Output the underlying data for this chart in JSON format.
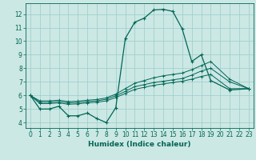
{
  "xlabel": "Humidex (Indice chaleur)",
  "background_color": "#cce8e4",
  "grid_color": "#99cccc",
  "line_color": "#006655",
  "xlim": [
    -0.5,
    23.5
  ],
  "ylim": [
    3.6,
    12.8
  ],
  "xticks": [
    0,
    1,
    2,
    3,
    4,
    5,
    6,
    7,
    8,
    9,
    10,
    11,
    12,
    13,
    14,
    15,
    16,
    17,
    18,
    19,
    20,
    21,
    22,
    23
  ],
  "yticks": [
    4,
    5,
    6,
    7,
    8,
    9,
    10,
    11,
    12
  ],
  "series": [
    [
      6.0,
      5.0,
      5.0,
      5.2,
      4.5,
      4.5,
      4.7,
      4.3,
      4.0,
      5.1,
      10.2,
      11.4,
      11.7,
      12.3,
      12.35,
      12.2,
      10.9,
      8.5,
      9.0,
      7.1,
      6.4,
      6.5
    ],
    [
      6.0,
      5.4,
      5.4,
      5.45,
      5.35,
      5.38,
      5.45,
      5.5,
      5.6,
      5.85,
      6.15,
      6.45,
      6.6,
      6.75,
      6.85,
      6.95,
      7.05,
      7.2,
      7.4,
      7.55,
      6.5,
      6.5
    ],
    [
      6.0,
      5.5,
      5.5,
      5.55,
      5.45,
      5.48,
      5.55,
      5.6,
      5.72,
      5.98,
      6.3,
      6.65,
      6.8,
      6.95,
      7.05,
      7.15,
      7.25,
      7.5,
      7.8,
      8.0,
      7.0,
      6.5
    ],
    [
      6.0,
      5.6,
      5.6,
      5.65,
      5.55,
      5.58,
      5.65,
      5.7,
      5.82,
      6.1,
      6.5,
      6.9,
      7.1,
      7.3,
      7.45,
      7.55,
      7.65,
      7.9,
      8.2,
      8.5,
      7.2,
      6.5
    ]
  ],
  "x_offsets": [
    0,
    1,
    2,
    3,
    4,
    5,
    6,
    7,
    8,
    9,
    10,
    11,
    12,
    13,
    14,
    15,
    16,
    17,
    18,
    19,
    21,
    23
  ]
}
